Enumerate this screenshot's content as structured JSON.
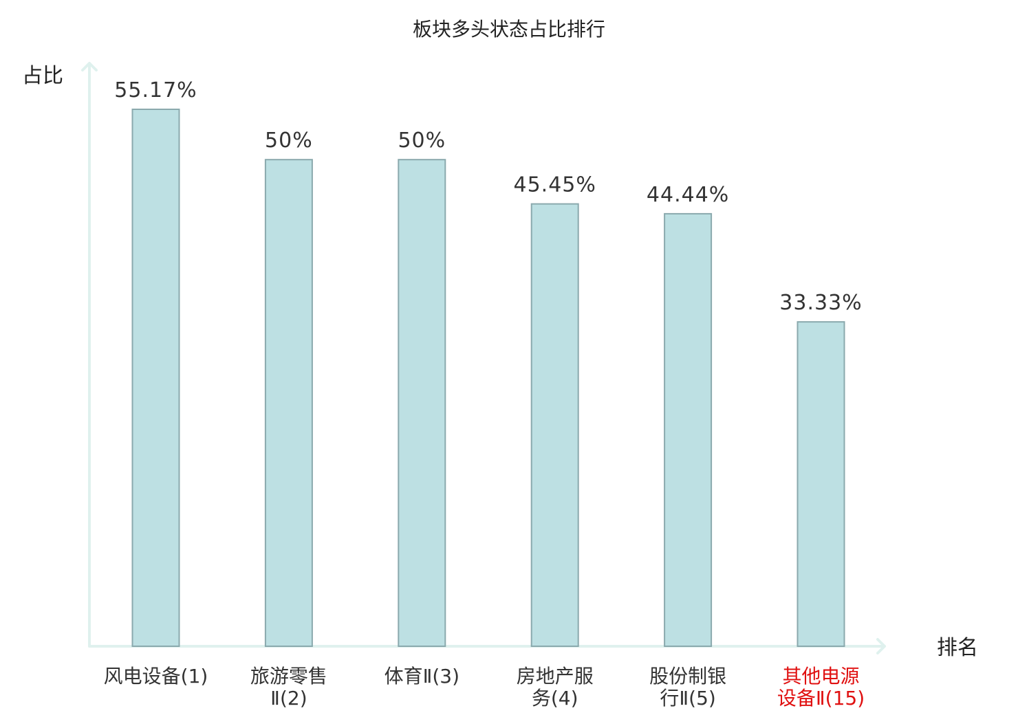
{
  "chart_data": {
    "type": "bar",
    "title": "板块多头状态占比排行",
    "ylabel": "占比",
    "xlabel": "排名",
    "categories": [
      [
        "风电设备(1)"
      ],
      [
        "旅游零售",
        "Ⅱ(2)"
      ],
      [
        "体育Ⅱ(3)"
      ],
      [
        "房地产服",
        "务(4)"
      ],
      [
        "股份制银",
        "行Ⅱ(5)"
      ],
      [
        "其他电源",
        "设备Ⅱ(15)"
      ]
    ],
    "values": [
      55.17,
      50,
      50,
      45.45,
      44.44,
      33.33
    ],
    "value_labels": [
      "55.17%",
      "50%",
      "50%",
      "45.45%",
      "44.44%",
      "33.33%"
    ],
    "highlight_index": 5,
    "ylim": [
      0,
      60
    ],
    "colors": {
      "bar": "#bde0e3",
      "bar_stroke": "#8aa9ad",
      "axis": "#dff1ee",
      "highlight": "#e01010"
    }
  }
}
